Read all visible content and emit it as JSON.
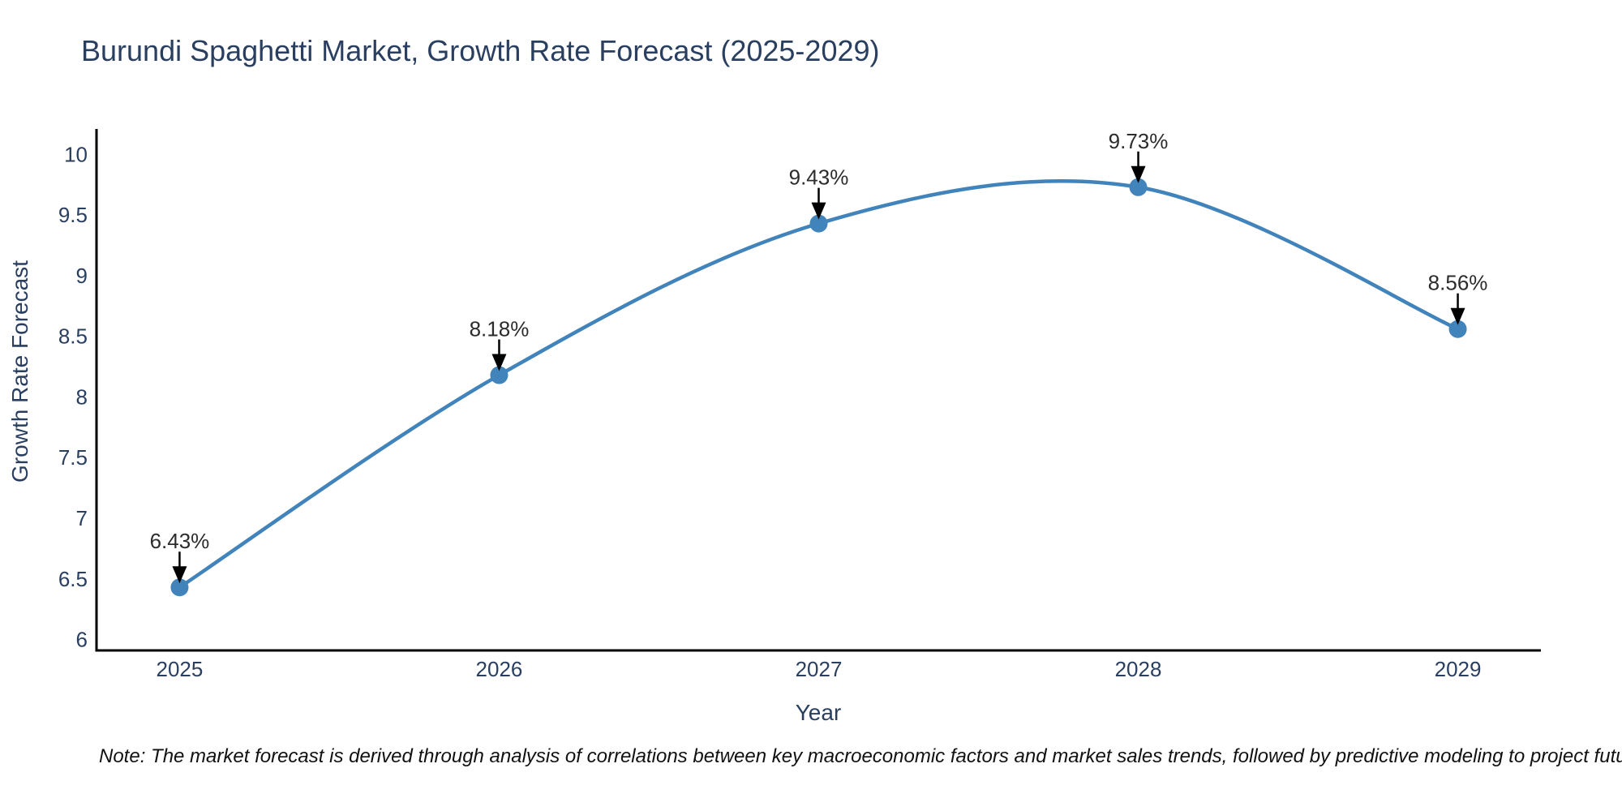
{
  "page": {
    "background": "#ffffff",
    "footnote": "Note: The market forecast is derived through analysis of correlations between key macroeconomic factors and market sales trends, followed by predictive modeling to project future sales"
  },
  "chart_data": {
    "type": "line",
    "title": "Burundi Spaghetti Market, Growth Rate Forecast (2025-2029)",
    "xlabel": "Year",
    "ylabel": "Growth Rate Forecast",
    "x": [
      2025,
      2026,
      2027,
      2028,
      2029
    ],
    "series": [
      {
        "name": "Growth Rate Forecast",
        "values": [
          6.43,
          8.18,
          9.43,
          9.73,
          8.56
        ]
      }
    ],
    "point_labels": [
      "6.43%",
      "8.18%",
      "9.43%",
      "9.73%",
      "8.56%"
    ],
    "xticks": [
      "2025",
      "2026",
      "2027",
      "2028",
      "2029"
    ],
    "yticks": [
      "6",
      "6.5",
      "7",
      "7.5",
      "8",
      "8.5",
      "9",
      "9.5",
      "10"
    ],
    "xlim": [
      2024.74,
      2029.26
    ],
    "ylim": [
      5.91,
      10.21
    ],
    "line_shape": "spline",
    "markers": true,
    "grid": false,
    "legend": "none",
    "annotations_arrow": "down-to-point",
    "colors": {
      "line": "#4183bb",
      "marker": "#4183bb",
      "axis_line": "#000000",
      "title_text": "#2a3f5f",
      "axis_text": "#2a3f5f",
      "annotation_text": "#2c2c2c",
      "arrow": "#000000",
      "background": "#ffffff"
    }
  }
}
